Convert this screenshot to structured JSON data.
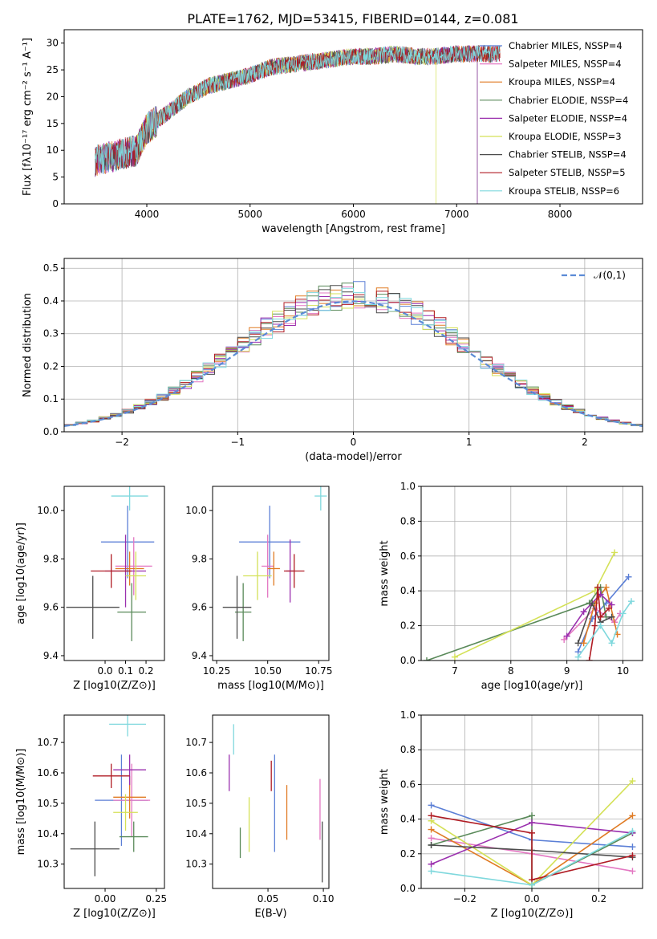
{
  "figure_title": "PLATE=1762, MJD=53415, FIBERID=0144, z=0.081",
  "colors": {
    "ChabrierMILES": "#5b7fd6",
    "SalpeterMILES": "#e377c2",
    "KroupaMILES": "#e07b24",
    "ChabrierELODIE": "#5a8a5a",
    "SalpeterELODIE": "#9a2fae",
    "KroupaELODIE": "#d4e157",
    "ChabrierSTELIB": "#4d4d4d",
    "SalpeterSTELIB": "#b01c24",
    "KroupaSTELIB": "#7fd8dd"
  },
  "chart_data": [
    {
      "id": "spectrum",
      "type": "line",
      "title": "PLATE=1762, MJD=53415, FIBERID=0144, z=0.081",
      "xlabel": "wavelength [Angstrom, rest frame]",
      "ylabel": "Flux [fλ10⁻¹⁷ erg cm⁻² s⁻¹ A⁻¹]",
      "xlim": [
        3200,
        8800
      ],
      "ylim": [
        0,
        32.5
      ],
      "xticks": [
        "4000",
        "5000",
        "6000",
        "7000",
        "8000"
      ],
      "yticks": [
        "0",
        "5",
        "10",
        "15",
        "20",
        "25",
        "30"
      ],
      "legend_position": "right",
      "legend": [
        "Chabrier MILES, NSSP=4",
        "Salpeter MILES, NSSP=4",
        "Kroupa MILES, NSSP=4",
        "Chabrier ELODIE, NSSP=4",
        "Salpeter ELODIE, NSSP=4",
        "Kroupa ELODIE, NSSP=3",
        "Chabrier STELIB, NSSP=4",
        "Salpeter STELIB, NSSP=5",
        "Kroupa STELIB, NSSP=6"
      ],
      "continuum_x": [
        3500,
        3700,
        3900,
        4000,
        4200,
        4400,
        4600,
        4800,
        5000,
        5200,
        5400,
        5600,
        5800,
        6000,
        6200,
        6400,
        6600,
        6800,
        7000,
        7200,
        7400
      ],
      "continuum_y": [
        8,
        9,
        10,
        14,
        17,
        20,
        22,
        23,
        24,
        25.5,
        26,
        26.5,
        27,
        27.5,
        27.5,
        28,
        27.5,
        27.5,
        28,
        28,
        28
      ]
    },
    {
      "id": "residuals",
      "type": "bar",
      "xlabel": "(data-model)/error",
      "ylabel": "Normed distribution",
      "xlim": [
        -2.5,
        2.5
      ],
      "ylim": [
        0,
        0.53
      ],
      "xticks": [
        "−2",
        "−1",
        "0",
        "1",
        "2"
      ],
      "yticks": [
        "0.0",
        "0.1",
        "0.2",
        "0.3",
        "0.4",
        "0.5"
      ],
      "grid": true,
      "legend_position": "top-right",
      "legend": [
        "𝒩(0,1)"
      ],
      "bin_width": 0.1
    },
    {
      "id": "age_vs_Z",
      "type": "scatter",
      "xlabel": "Z [log10(Z/Z⊙)]",
      "ylabel": "age  [log10(age/yr)]",
      "xlim": [
        -0.2,
        0.29
      ],
      "ylim": [
        9.38,
        10.1
      ],
      "xticks": [
        "0.0",
        "0.1",
        "0.2"
      ],
      "yticks": [
        "9.4",
        "9.6",
        "9.8",
        "10.0"
      ],
      "points": [
        {
          "x": 0.11,
          "y": 9.87,
          "xerr": 0.13,
          "yerr": 0.15
        },
        {
          "x": 0.14,
          "y": 9.77,
          "xerr": 0.09,
          "yerr": 0.12
        },
        {
          "x": 0.12,
          "y": 9.76,
          "xerr": 0.07,
          "yerr": 0.07
        },
        {
          "x": 0.13,
          "y": 9.58,
          "xerr": 0.07,
          "yerr": 0.12
        },
        {
          "x": 0.1,
          "y": 9.75,
          "xerr": 0.1,
          "yerr": 0.15
        },
        {
          "x": 0.15,
          "y": 9.73,
          "xerr": 0.05,
          "yerr": 0.1
        },
        {
          "x": -0.06,
          "y": 9.6,
          "xerr": 0.13,
          "yerr": 0.13
        },
        {
          "x": 0.03,
          "y": 9.75,
          "xerr": 0.1,
          "yerr": 0.07
        },
        {
          "x": 0.12,
          "y": 10.06,
          "xerr": 0.09,
          "yerr": 0.06
        }
      ]
    },
    {
      "id": "age_vs_mass",
      "type": "scatter",
      "xlabel": "mass [log10(M/M⊙)]",
      "ylabel": "",
      "xlim": [
        10.23,
        10.8
      ],
      "ylim": [
        9.38,
        10.1
      ],
      "xticks": [
        "10.25",
        "10.50",
        "10.75"
      ],
      "yticks": [
        "9.4",
        "9.6",
        "9.8",
        "10.0"
      ],
      "points": [
        {
          "x": 10.51,
          "y": 9.87,
          "xerr": 0.15,
          "yerr": 0.15
        },
        {
          "x": 10.5,
          "y": 9.77,
          "xerr": 0.03,
          "yerr": 0.13
        },
        {
          "x": 10.53,
          "y": 9.76,
          "xerr": 0.03,
          "yerr": 0.07
        },
        {
          "x": 10.38,
          "y": 9.58,
          "xerr": 0.04,
          "yerr": 0.12
        },
        {
          "x": 10.61,
          "y": 9.75,
          "xerr": 0.02,
          "yerr": 0.13
        },
        {
          "x": 10.45,
          "y": 9.73,
          "xerr": 0.07,
          "yerr": 0.1
        },
        {
          "x": 10.35,
          "y": 9.6,
          "xerr": 0.07,
          "yerr": 0.13
        },
        {
          "x": 10.63,
          "y": 9.75,
          "xerr": 0.05,
          "yerr": 0.07
        },
        {
          "x": 10.76,
          "y": 10.06,
          "xerr": 0.03,
          "yerr": 0.06
        }
      ]
    },
    {
      "id": "massweight_vs_age",
      "type": "line",
      "xlabel": "age  [log10(age/yr)]",
      "ylabel": "mass weight",
      "xlim": [
        6.4,
        10.35
      ],
      "ylim": [
        0,
        1
      ],
      "xticks": [
        "7",
        "8",
        "9",
        "10"
      ],
      "yticks": [
        "0.0",
        "0.2",
        "0.4",
        "0.6",
        "0.8",
        "1.0"
      ],
      "grid": true,
      "series": [
        {
          "x": [
            9.2,
            9.45,
            9.7,
            10.1
          ],
          "y": [
            0.05,
            0.24,
            0.33,
            0.48
          ]
        },
        {
          "x": [
            8.95,
            9.5,
            9.85,
            9.95
          ],
          "y": [
            0.12,
            0.3,
            0.22,
            0.27
          ]
        },
        {
          "x": [
            9.3,
            9.5,
            9.7,
            9.9
          ],
          "y": [
            0.1,
            0.33,
            0.42,
            0.15
          ]
        },
        {
          "x": [
            6.5,
            9.4,
            9.6,
            9.7
          ],
          "y": [
            0.0,
            0.33,
            0.42,
            0.25
          ]
        },
        {
          "x": [
            9.0,
            9.3,
            9.6,
            9.8
          ],
          "y": [
            0.14,
            0.28,
            0.38,
            0.32
          ]
        },
        {
          "x": [
            7.0,
            9.5,
            9.85
          ],
          "y": [
            0.02,
            0.4,
            0.62
          ]
        },
        {
          "x": [
            9.2,
            9.45,
            9.6,
            9.8
          ],
          "y": [
            0.1,
            0.33,
            0.22,
            0.25
          ]
        },
        {
          "x": [
            9.4,
            9.5,
            9.55,
            9.6,
            9.75
          ],
          "y": [
            0.0,
            0.2,
            0.42,
            0.25,
            0.3
          ]
        },
        {
          "x": [
            9.2,
            9.6,
            9.8,
            10.0,
            10.15
          ],
          "y": [
            0.02,
            0.2,
            0.1,
            0.27,
            0.34
          ]
        }
      ]
    },
    {
      "id": "mass_vs_Z",
      "type": "scatter",
      "xlabel": "Z [log10(Z/Z⊙)]",
      "ylabel": "mass [log10(M/M⊙)]",
      "xlim": [
        -0.2,
        0.29
      ],
      "ylim": [
        10.22,
        10.79
      ],
      "xticks": [
        "0.00",
        "0.25"
      ],
      "yticks": [
        "10.3",
        "10.4",
        "10.5",
        "10.6",
        "10.7"
      ],
      "points": [
        {
          "x": 0.08,
          "y": 10.51,
          "xerr": 0.13,
          "yerr": 0.15
        },
        {
          "x": 0.13,
          "y": 10.51,
          "xerr": 0.09,
          "yerr": 0.12
        },
        {
          "x": 0.12,
          "y": 10.52,
          "xerr": 0.08,
          "yerr": 0.07
        },
        {
          "x": 0.14,
          "y": 10.39,
          "xerr": 0.07,
          "yerr": 0.05
        },
        {
          "x": 0.12,
          "y": 10.61,
          "xerr": 0.08,
          "yerr": 0.05
        },
        {
          "x": 0.1,
          "y": 10.47,
          "xerr": 0.06,
          "yerr": 0.06
        },
        {
          "x": -0.05,
          "y": 10.35,
          "xerr": 0.12,
          "yerr": 0.09
        },
        {
          "x": 0.03,
          "y": 10.59,
          "xerr": 0.09,
          "yerr": 0.04
        },
        {
          "x": 0.11,
          "y": 10.76,
          "xerr": 0.09,
          "yerr": 0.04
        }
      ]
    },
    {
      "id": "mass_vs_EBV",
      "type": "scatter",
      "xlabel": "E(B-V)",
      "ylabel": "",
      "xlim": [
        0.0,
        0.105
      ],
      "ylim": [
        10.22,
        10.79
      ],
      "xticks": [
        "0.05",
        "0.10"
      ],
      "yticks": [
        "10.3",
        "10.4",
        "10.5",
        "10.6",
        "10.7"
      ],
      "points": [
        {
          "x": 0.056,
          "y": 10.5,
          "yerr": 0.16
        },
        {
          "x": 0.097,
          "y": 10.48,
          "yerr": 0.1
        },
        {
          "x": 0.067,
          "y": 10.47,
          "yerr": 0.09
        },
        {
          "x": 0.025,
          "y": 10.37,
          "yerr": 0.05
        },
        {
          "x": 0.015,
          "y": 10.6,
          "yerr": 0.06
        },
        {
          "x": 0.033,
          "y": 10.43,
          "yerr": 0.09
        },
        {
          "x": 0.099,
          "y": 10.34,
          "yerr": 0.1
        },
        {
          "x": 0.053,
          "y": 10.59,
          "yerr": 0.05
        },
        {
          "x": 0.019,
          "y": 10.71,
          "yerr": 0.05
        }
      ]
    },
    {
      "id": "massweight_vs_Z",
      "type": "line",
      "xlabel": "Z [log10(Z/Z⊙)]",
      "ylabel": "mass weight",
      "xlim": [
        -0.33,
        0.33
      ],
      "ylim": [
        0,
        1
      ],
      "xticks": [
        "−0.2",
        "0.0",
        "0.2"
      ],
      "yticks": [
        "0.0",
        "0.2",
        "0.4",
        "0.6",
        "0.8",
        "1.0"
      ],
      "grid": true,
      "series": [
        {
          "x": [
            -0.3,
            0.0,
            0.3
          ],
          "y": [
            0.48,
            0.28,
            0.24
          ]
        },
        {
          "x": [
            -0.3,
            0.0,
            0.3
          ],
          "y": [
            0.29,
            0.2,
            0.1
          ]
        },
        {
          "x": [
            -0.3,
            0.0,
            0.3
          ],
          "y": [
            0.34,
            0.02,
            0.42
          ]
        },
        {
          "x": [
            -0.3,
            0.0,
            0.0,
            0.3
          ],
          "y": [
            0.25,
            0.42,
            0.02,
            0.32
          ]
        },
        {
          "x": [
            -0.3,
            0.0,
            0.3
          ],
          "y": [
            0.14,
            0.38,
            0.32
          ]
        },
        {
          "x": [
            -0.3,
            0.0,
            0.3
          ],
          "y": [
            0.39,
            0.02,
            0.62
          ]
        },
        {
          "x": [
            -0.3,
            0.0,
            0.3
          ],
          "y": [
            0.25,
            0.22,
            0.18
          ]
        },
        {
          "x": [
            -0.3,
            0.0,
            0.0,
            0.3
          ],
          "y": [
            0.42,
            0.32,
            0.05,
            0.19
          ]
        },
        {
          "x": [
            -0.3,
            0.0,
            0.3
          ],
          "y": [
            0.1,
            0.02,
            0.33
          ]
        }
      ]
    }
  ]
}
